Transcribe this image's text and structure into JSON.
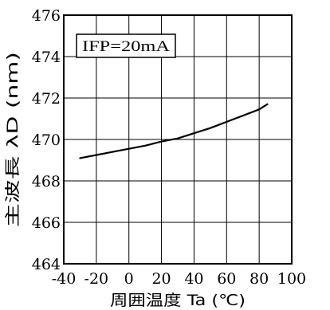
{
  "chart_data": {
    "type": "line",
    "xlabel": "周囲温度 Ta (℃)",
    "ylabel": "主波長  λD (nm)",
    "xlim": [
      -40,
      100
    ],
    "ylim": [
      464,
      476
    ],
    "x_ticks": [
      -40,
      -20,
      0,
      20,
      40,
      60,
      80,
      100
    ],
    "y_ticks": [
      464,
      466,
      468,
      470,
      472,
      474,
      476
    ],
    "grid": true,
    "annotation": "IFP=20mA",
    "series": [
      {
        "x": [
          -30,
          -20,
          -10,
          0,
          10,
          20,
          30,
          40,
          50,
          60,
          70,
          80,
          85
        ],
        "y": [
          469.1,
          469.25,
          469.4,
          469.55,
          469.7,
          469.9,
          470.05,
          470.3,
          470.55,
          470.85,
          471.15,
          471.45,
          471.7
        ]
      }
    ],
    "colors": {
      "line": "#000000",
      "grid": "#000000",
      "background": "#ffffff"
    }
  }
}
